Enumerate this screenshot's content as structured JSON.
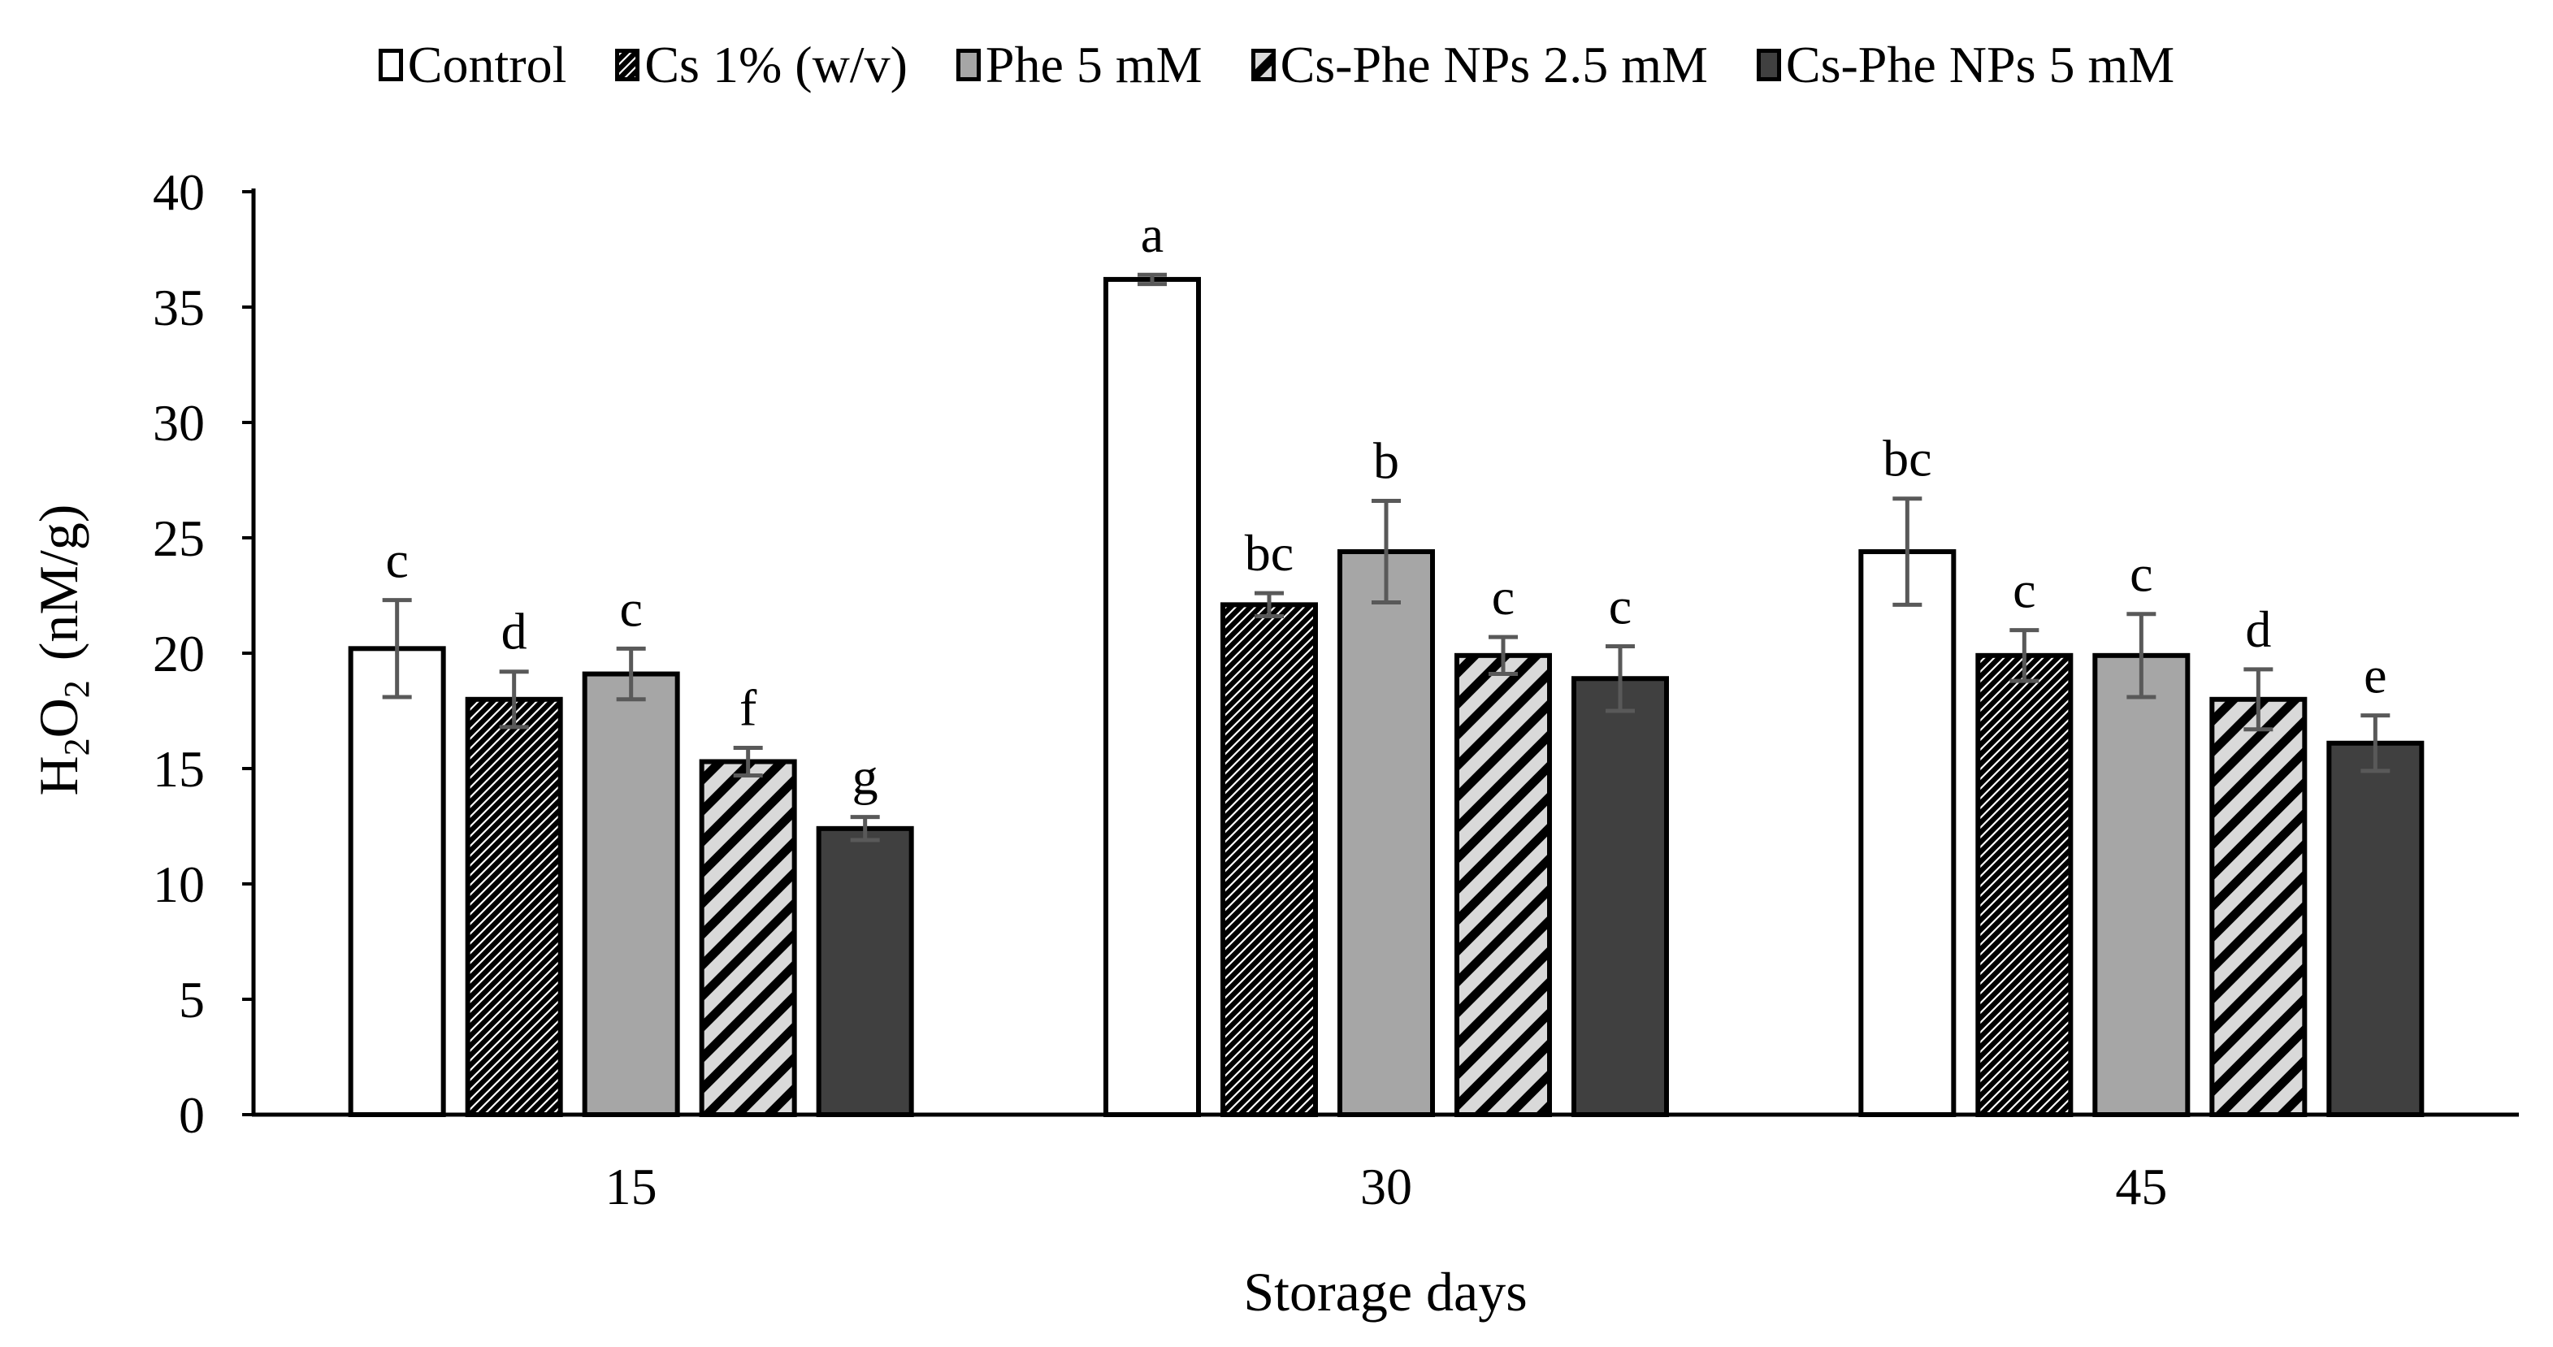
{
  "chart_data": {
    "type": "bar",
    "title": "",
    "xlabel": "Storage days",
    "ylabel": "H2O2 (nM/g)",
    "ylabel_parts": {
      "h": "H",
      "two_a": "2",
      "o": "O",
      "two_b": "2",
      "unit": "(nM/g)"
    },
    "ylim": [
      0,
      40
    ],
    "yticks": [
      "0",
      "5",
      "10",
      "15",
      "20",
      "25",
      "30",
      "35",
      "40"
    ],
    "categories": [
      "15",
      "30",
      "45"
    ],
    "legend_position": "top",
    "series": [
      {
        "name": "Control",
        "values": [
          20.2,
          36.2,
          24.4
        ],
        "errors": [
          2.1,
          0.2,
          2.3
        ],
        "letters": [
          "c",
          "a",
          "bc"
        ],
        "color": "#ffffff",
        "pattern": "none"
      },
      {
        "name": "Cs 1% (w/v)",
        "values": [
          18.0,
          22.1,
          19.9
        ],
        "errors": [
          1.2,
          0.5,
          1.1
        ],
        "letters": [
          "d",
          "bc",
          "c"
        ],
        "color": "#000000",
        "pattern": "dark-diagonal"
      },
      {
        "name": "Phe 5 mM",
        "values": [
          19.1,
          24.4,
          19.9
        ],
        "errors": [
          1.1,
          2.2,
          1.8
        ],
        "letters": [
          "c",
          "b",
          "c"
        ],
        "color": "#a6a6a6",
        "pattern": "none"
      },
      {
        "name": "Cs-Phe NPs 2.5 mM",
        "values": [
          15.3,
          19.9,
          18.0
        ],
        "errors": [
          0.6,
          0.8,
          1.3
        ],
        "letters": [
          "f",
          "c",
          "d"
        ],
        "color": "#d9d9d9",
        "pattern": "wide-diagonal"
      },
      {
        "name": "Cs-Phe NPs 5 mM",
        "values": [
          12.4,
          18.9,
          16.1
        ],
        "errors": [
          0.5,
          1.4,
          1.2
        ],
        "letters": [
          "g",
          "c",
          "e"
        ],
        "color": "#404040",
        "pattern": "none"
      }
    ]
  }
}
